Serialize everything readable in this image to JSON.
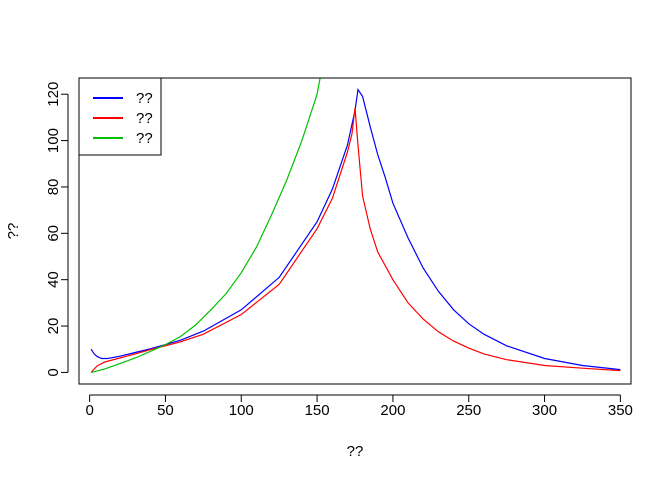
{
  "chart_data": {
    "type": "line",
    "title": "",
    "xlabel": "??",
    "ylabel": "??",
    "xlim": [
      -7,
      357
    ],
    "ylim": [
      -5,
      127
    ],
    "x_ticks": [
      "0",
      "50",
      "100",
      "150",
      "200",
      "250",
      "300",
      "350"
    ],
    "y_ticks": [
      "0",
      "20",
      "40",
      "60",
      "80",
      "100",
      "120"
    ],
    "grid": false,
    "legend": {
      "placement": "top-left",
      "entries": [
        "??",
        "??",
        "??"
      ]
    },
    "series": [
      {
        "name": "??",
        "color": "#0000ff",
        "points": [
          [
            1,
            10
          ],
          [
            3,
            8
          ],
          [
            5,
            6.8
          ],
          [
            8,
            6
          ],
          [
            12,
            6
          ],
          [
            20,
            7
          ],
          [
            30,
            8.6
          ],
          [
            40,
            10.2
          ],
          [
            50,
            12
          ],
          [
            60,
            13.9
          ],
          [
            75,
            17.8
          ],
          [
            100,
            27
          ],
          [
            125,
            41
          ],
          [
            150,
            65
          ],
          [
            160,
            79
          ],
          [
            170,
            98
          ],
          [
            175,
            113
          ],
          [
            177,
            122
          ],
          [
            180,
            119
          ],
          [
            185,
            106
          ],
          [
            190,
            94
          ],
          [
            195,
            84
          ],
          [
            200,
            73
          ],
          [
            210,
            58
          ],
          [
            220,
            45
          ],
          [
            230,
            35
          ],
          [
            240,
            27
          ],
          [
            250,
            21
          ],
          [
            260,
            16.5
          ],
          [
            275,
            11.5
          ],
          [
            300,
            6
          ],
          [
            325,
            3
          ],
          [
            350,
            1.2
          ]
        ]
      },
      {
        "name": "??",
        "color": "#ff0000",
        "points": [
          [
            1,
            0
          ],
          [
            5,
            2.8
          ],
          [
            10,
            4.5
          ],
          [
            20,
            6.2
          ],
          [
            30,
            8
          ],
          [
            40,
            9.8
          ],
          [
            50,
            11.5
          ],
          [
            60,
            13.2
          ],
          [
            75,
            16.5
          ],
          [
            100,
            25
          ],
          [
            125,
            38
          ],
          [
            150,
            62
          ],
          [
            160,
            75
          ],
          [
            170,
            95
          ],
          [
            173,
            103
          ],
          [
            175,
            114
          ],
          [
            177,
            98
          ],
          [
            180,
            76
          ],
          [
            185,
            62
          ],
          [
            190,
            52
          ],
          [
            200,
            40
          ],
          [
            210,
            30
          ],
          [
            220,
            23
          ],
          [
            230,
            17.5
          ],
          [
            240,
            13.5
          ],
          [
            250,
            10.5
          ],
          [
            260,
            8
          ],
          [
            275,
            5.5
          ],
          [
            300,
            3
          ],
          [
            325,
            1.8
          ],
          [
            350,
            0.8
          ]
        ]
      },
      {
        "name": "??",
        "color": "#00c000",
        "points": [
          [
            1,
            0
          ],
          [
            10,
            1.5
          ],
          [
            20,
            3.8
          ],
          [
            30,
            6.2
          ],
          [
            40,
            9
          ],
          [
            50,
            12
          ],
          [
            60,
            15.5
          ],
          [
            70,
            20.5
          ],
          [
            80,
            27
          ],
          [
            90,
            34
          ],
          [
            100,
            43
          ],
          [
            110,
            54
          ],
          [
            120,
            68
          ],
          [
            130,
            83
          ],
          [
            140,
            100
          ],
          [
            150,
            120
          ],
          [
            152,
            127
          ]
        ]
      }
    ]
  }
}
